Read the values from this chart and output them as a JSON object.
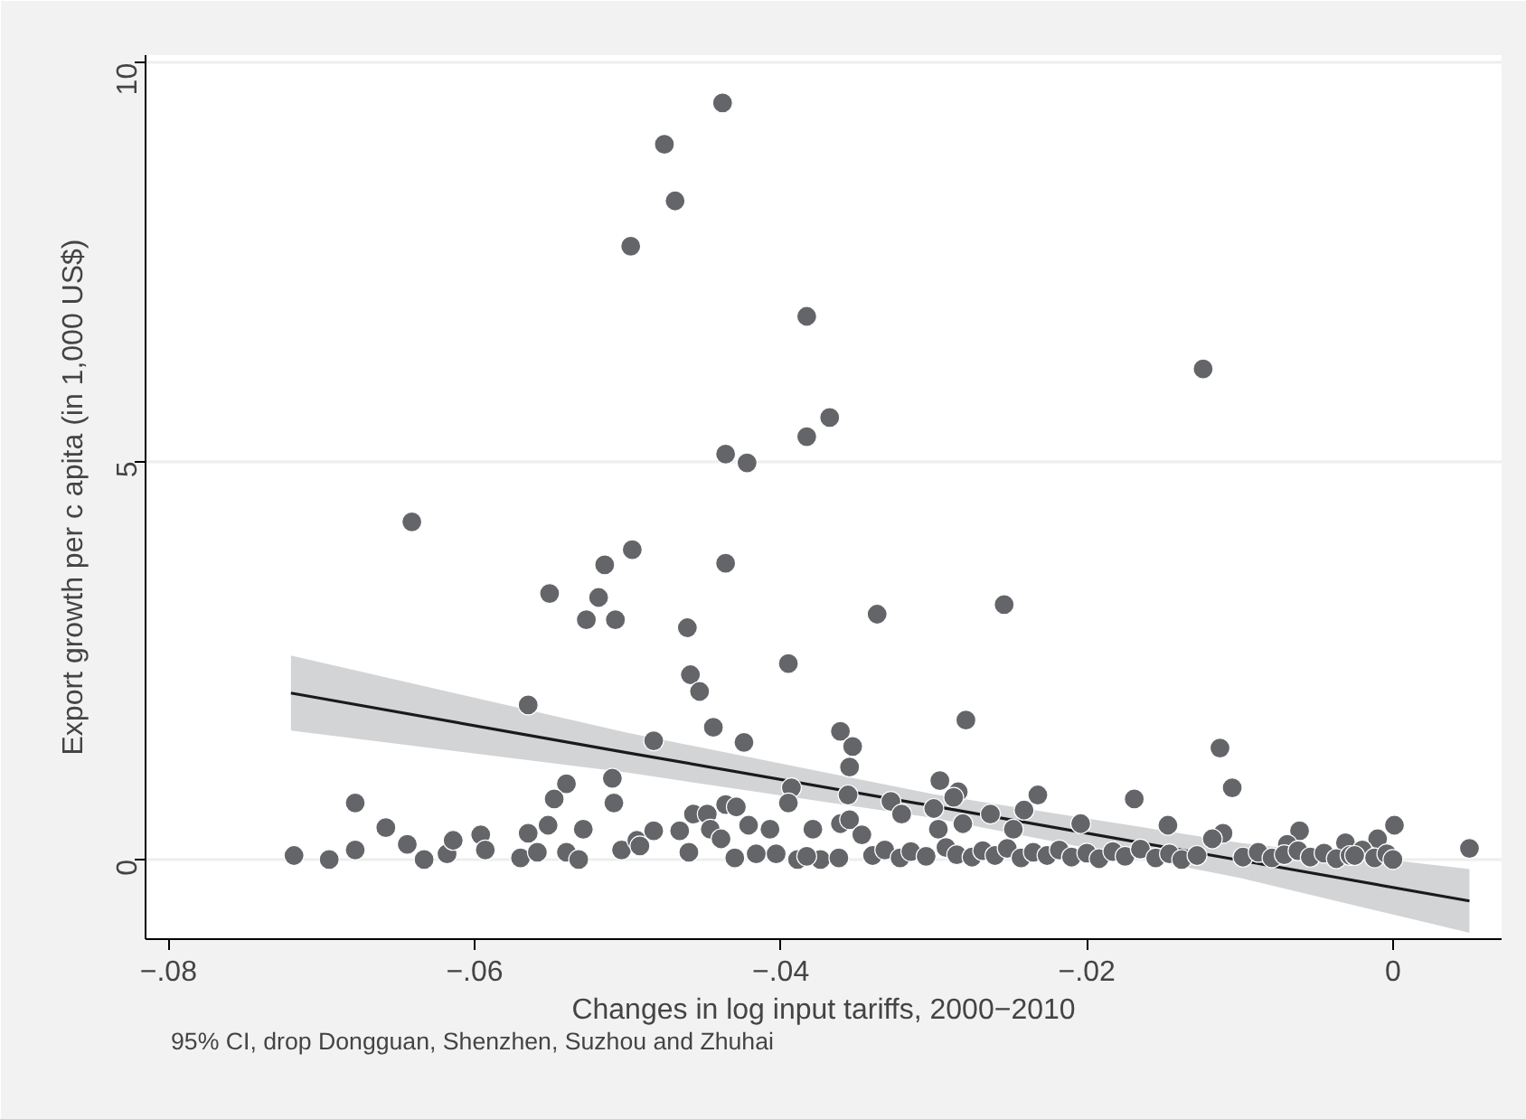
{
  "chart_data": {
    "type": "scatter",
    "xlabel": "Changes in log input tariffs, 2000−2010",
    "ylabel": "Export growth per c apita (in 1,000 US$)",
    "annotations": [
      "95% CI, drop Dongguan, Shenzhen, Suzhou and Zhuhai"
    ],
    "xlim": [
      -0.0815,
      0.0071
    ],
    "ylim": [
      -1.0,
      10.1
    ],
    "xticks": [
      {
        "value": -0.08,
        "label": "−.08"
      },
      {
        "value": -0.06,
        "label": "−.06"
      },
      {
        "value": -0.04,
        "label": "−.04"
      },
      {
        "value": -0.02,
        "label": "−.02"
      },
      0
    ],
    "yticks": [
      0,
      5,
      10
    ],
    "grid": "y",
    "marker": "circle",
    "series": [
      {
        "type": "scatter",
        "color": "#646569",
        "x": [
          -0.0438,
          -0.0476,
          -0.0469,
          -0.0498,
          -0.0383,
          -0.0368,
          -0.0383,
          -0.0436,
          -0.0422,
          -0.0641,
          -0.0497,
          -0.0515,
          -0.0436,
          -0.0551,
          -0.0519,
          -0.0527,
          -0.0508,
          -0.0461,
          -0.0337,
          -0.0124,
          -0.0254,
          -0.0395,
          -0.0459,
          -0.0453,
          -0.0565,
          -0.0444,
          -0.0424,
          -0.0483,
          -0.0361,
          -0.0353,
          -0.0355,
          -0.0356,
          -0.0393,
          -0.0395,
          -0.054,
          -0.0548,
          -0.051,
          -0.0509,
          -0.0678,
          -0.0658,
          -0.0644,
          -0.0633,
          -0.0718,
          -0.0695,
          -0.0618,
          -0.0614,
          -0.0596,
          -0.0593,
          -0.057,
          -0.0565,
          -0.0559,
          -0.0552,
          -0.054,
          -0.0532,
          -0.0529,
          -0.0504,
          -0.0494,
          -0.0492,
          -0.0483,
          -0.0466,
          -0.046,
          -0.0457,
          -0.0448,
          -0.0436,
          -0.0429,
          -0.0446,
          -0.0439,
          -0.043,
          -0.0421,
          -0.0416,
          -0.0407,
          -0.0403,
          -0.0389,
          -0.0379,
          -0.0374,
          -0.0361,
          -0.0362,
          -0.0279,
          -0.0113,
          -0.0105,
          -0.0296,
          -0.0284,
          -0.0287,
          -0.0232,
          -0.0169,
          -0.0328,
          -0.0321,
          -0.03,
          -0.0297,
          -0.0263,
          -0.0241,
          -0.0281,
          -0.0248,
          -0.0204,
          -0.0147,
          -0.0111,
          0.0001,
          -0.0061,
          -0.001,
          -0.0031,
          0.005,
          -0.0355,
          -0.0347,
          -0.0118,
          -0.0069,
          -0.034,
          -0.0332,
          -0.0322,
          -0.0315,
          -0.0305,
          -0.0292,
          -0.0285,
          -0.0275,
          -0.0268,
          -0.026,
          -0.0252,
          -0.0243,
          -0.0235,
          -0.0226,
          -0.0218,
          -0.021,
          -0.02,
          -0.0192,
          -0.0183,
          -0.0175,
          -0.0165,
          -0.0155,
          -0.0146,
          -0.0138,
          -0.0128,
          -0.0098,
          -0.0088,
          -0.0079,
          -0.0071,
          -0.0062,
          -0.0054,
          -0.0045,
          -0.0037,
          -0.0028,
          -0.002,
          -0.0012,
          -0.0004,
          0.0,
          -0.0383,
          -0.0678,
          -0.0025
        ],
        "values": [
          9.5,
          8.98,
          8.27,
          7.7,
          6.82,
          5.55,
          5.31,
          5.09,
          4.98,
          4.24,
          3.89,
          3.7,
          3.72,
          3.34,
          3.29,
          3.01,
          3.01,
          2.91,
          3.08,
          6.16,
          3.2,
          2.46,
          2.32,
          2.11,
          1.94,
          1.66,
          1.47,
          1.49,
          1.61,
          1.42,
          1.16,
          0.81,
          0.9,
          0.71,
          0.95,
          0.76,
          1.02,
          0.71,
          0.71,
          0.4,
          0.19,
          0.0,
          0.05,
          0.0,
          0.07,
          0.24,
          0.31,
          0.12,
          0.02,
          0.33,
          0.09,
          0.43,
          0.09,
          0.0,
          0.38,
          0.12,
          0.24,
          0.17,
          0.36,
          0.36,
          0.09,
          0.57,
          0.57,
          0.69,
          0.66,
          0.38,
          0.26,
          0.02,
          0.43,
          0.07,
          0.38,
          0.07,
          0.0,
          0.38,
          0.0,
          0.45,
          0.02,
          1.75,
          1.4,
          0.9,
          0.99,
          0.85,
          0.78,
          0.81,
          0.76,
          0.73,
          0.57,
          0.64,
          0.38,
          0.57,
          0.62,
          0.45,
          0.38,
          0.45,
          0.43,
          0.33,
          0.43,
          0.36,
          0.26,
          0.21,
          0.14,
          0.5,
          0.31,
          0.26,
          0.19,
          0.05,
          0.12,
          0.02,
          0.1,
          0.04,
          0.15,
          0.06,
          0.03,
          0.11,
          0.05,
          0.14,
          0.02,
          0.09,
          0.05,
          0.12,
          0.03,
          0.08,
          0.01,
          0.1,
          0.04,
          0.13,
          0.02,
          0.07,
          0.0,
          0.05,
          0.03,
          0.09,
          0.02,
          0.06,
          0.11,
          0.03,
          0.08,
          0.01,
          0.05,
          0.12,
          0.02,
          0.07,
          0.0,
          0.04,
          0.12,
          0.05
        ]
      },
      {
        "type": "line",
        "marker": "none",
        "color": "#1a1a1a",
        "x": [
          -0.072,
          -0.05,
          -0.03,
          -0.01,
          0.005
        ],
        "values": [
          2.09,
          1.34,
          0.67,
          -0.01,
          -0.52
        ],
        "lower": [
          1.62,
          1.09,
          0.52,
          -0.23,
          -0.92
        ],
        "upper": [
          2.56,
          1.59,
          0.82,
          0.21,
          -0.12
        ]
      }
    ]
  }
}
